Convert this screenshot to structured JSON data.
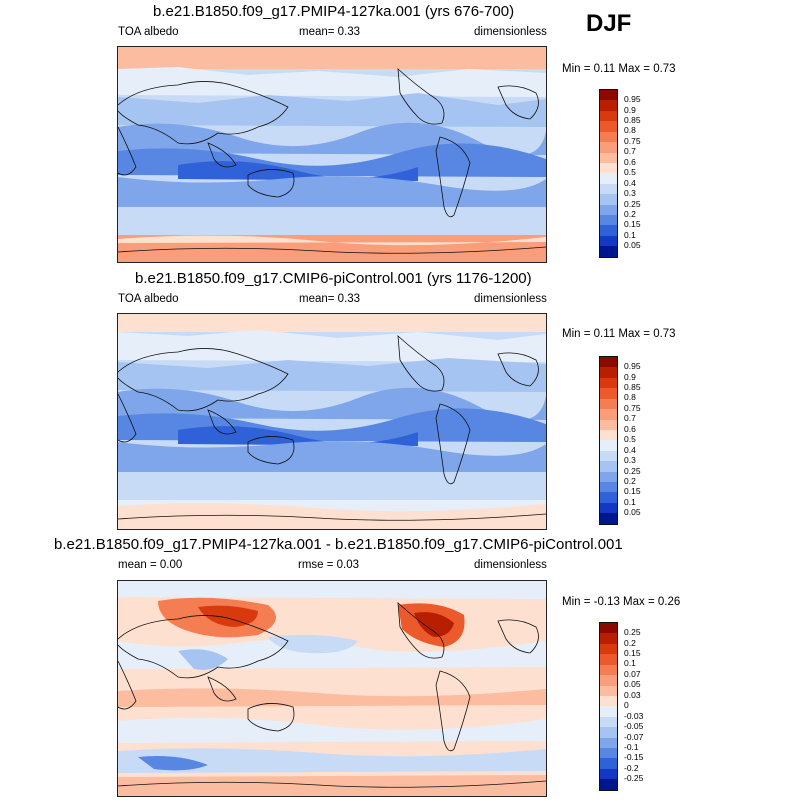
{
  "season": "DJF",
  "panels": [
    {
      "title": "b.e21.B1850.f09_g17.PMIP4-127ka.001 (yrs 676-700)",
      "left_label": "TOA albedo",
      "center_label": "mean=   0.33",
      "right_label": "dimensionless",
      "minmax": "Min =   0.11 Max =   0.73"
    },
    {
      "title": "b.e21.B1850.f09_g17.CMIP6-piControl.001 (yrs 1176-1200)",
      "left_label": "TOA albedo",
      "center_label": "mean=   0.33",
      "right_label": "dimensionless",
      "minmax": "Min =   0.11 Max =   0.73"
    },
    {
      "title": "b.e21.B1850.f09_g17.PMIP4-127ka.001 - b.e21.B1850.f09_g17.CMIP6-piControl.001",
      "left_label": "mean =   0.00",
      "center_label": "rmse =   0.03",
      "right_label": "dimensionless",
      "minmax": "Min =  -0.13 Max =   0.26"
    }
  ],
  "colorbars": {
    "abs": {
      "labels": [
        "0.95",
        "0.9",
        "0.85",
        "0.8",
        "0.75",
        "0.7",
        "0.6",
        "0.5",
        "0.4",
        "0.3",
        "0.25",
        "0.2",
        "0.15",
        "0.1",
        "0.05"
      ],
      "colors": [
        "#8a0a00",
        "#b81e00",
        "#d93a0d",
        "#ec5a2c",
        "#f47d52",
        "#f99d7a",
        "#fcbca0",
        "#fde0cf",
        "#e6eefa",
        "#c8dbf6",
        "#a6c4f1",
        "#7fa6ea",
        "#5787e2",
        "#2f62d8",
        "#1338c4",
        "#00168f"
      ]
    },
    "diff": {
      "labels": [
        "0.25",
        "0.2",
        "0.15",
        "0.1",
        "0.07",
        "0.05",
        "0.03",
        "0",
        "-0.03",
        "-0.05",
        "-0.07",
        "-0.1",
        "-0.15",
        "-0.2",
        "-0.25"
      ],
      "colors": [
        "#8a0a00",
        "#b81e00",
        "#d93a0d",
        "#ec5a2c",
        "#f47d52",
        "#f99d7a",
        "#fcbca0",
        "#fde0cf",
        "#e6eefa",
        "#c8dbf6",
        "#a6c4f1",
        "#7fa6ea",
        "#5787e2",
        "#2f62d8",
        "#1338c4",
        "#00168f"
      ]
    }
  },
  "chart_data": [
    {
      "type": "heatmap",
      "title": "b.e21.B1850.f09_g17.PMIP4-127ka.001 (yrs 676-700)",
      "variable": "TOA albedo",
      "units": "dimensionless",
      "season": "DJF",
      "mean": 0.33,
      "min": 0.11,
      "max": 0.73,
      "contour_levels": [
        0.05,
        0.1,
        0.15,
        0.2,
        0.25,
        0.3,
        0.4,
        0.5,
        0.6,
        0.7,
        0.75,
        0.8,
        0.85,
        0.9,
        0.95
      ],
      "projection": "global cylindrical (Pacific-centered)"
    },
    {
      "type": "heatmap",
      "title": "b.e21.B1850.f09_g17.CMIP6-piControl.001 (yrs 1176-1200)",
      "variable": "TOA albedo",
      "units": "dimensionless",
      "season": "DJF",
      "mean": 0.33,
      "min": 0.11,
      "max": 0.73,
      "contour_levels": [
        0.05,
        0.1,
        0.15,
        0.2,
        0.25,
        0.3,
        0.4,
        0.5,
        0.6,
        0.7,
        0.75,
        0.8,
        0.85,
        0.9,
        0.95
      ],
      "projection": "global cylindrical (Pacific-centered)"
    },
    {
      "type": "heatmap",
      "title": "b.e21.B1850.f09_g17.PMIP4-127ka.001 - b.e21.B1850.f09_g17.CMIP6-piControl.001",
      "units": "dimensionless",
      "season": "DJF",
      "mean": 0.0,
      "rmse": 0.03,
      "min": -0.13,
      "max": 0.26,
      "contour_levels": [
        -0.25,
        -0.2,
        -0.15,
        -0.1,
        -0.07,
        -0.05,
        -0.03,
        0,
        0.03,
        0.05,
        0.07,
        0.1,
        0.15,
        0.2,
        0.25
      ],
      "projection": "global cylindrical (Pacific-centered)"
    }
  ]
}
